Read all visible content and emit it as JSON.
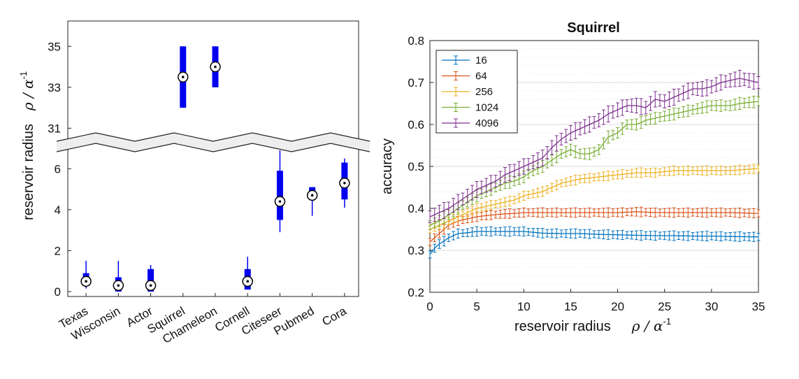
{
  "chart_data": [
    {
      "type": "box",
      "categories": [
        "Texas",
        "Wisconsin",
        "Actor",
        "Squirrel",
        "Chameleon",
        "Cornell",
        "Citeseer",
        "Pubmed",
        "Cora"
      ],
      "ylabel_text": "reservoir radius",
      "ylabel_symbol": "ρ / α",
      "ylabel_exp": "-1",
      "lower_ticks": [
        "0",
        "2",
        "4",
        "6"
      ],
      "upper_ticks": [
        "31",
        "33",
        "35"
      ],
      "lower_ylim": [
        0,
        7
      ],
      "upper_ylim": [
        30.5,
        36
      ],
      "break_between": [
        7,
        30.5
      ],
      "box_color": "#0000ee",
      "boxes": [
        {
          "min": 0.15,
          "q1": 0.3,
          "median": 0.5,
          "q3": 0.9,
          "max": 1.5
        },
        {
          "min": 0.0,
          "q1": 0.0,
          "median": 0.3,
          "q3": 0.7,
          "max": 1.5
        },
        {
          "min": 0.0,
          "q1": 0.0,
          "median": 0.3,
          "q3": 1.1,
          "max": 1.3
        },
        {
          "min": 32,
          "q1": 32,
          "median": 33.5,
          "q3": 35,
          "max": 35
        },
        {
          "min": 33,
          "q1": 33,
          "median": 34,
          "q3": 35,
          "max": 35
        },
        {
          "min": 0.1,
          "q1": 0.1,
          "median": 0.5,
          "q3": 1.1,
          "max": 1.7
        },
        {
          "min": 2.9,
          "q1": 3.5,
          "median": 4.4,
          "q3": 5.9,
          "max": 6.9
        },
        {
          "min": 3.7,
          "q1": 4.6,
          "median": 4.7,
          "q3": 5.1,
          "max": 5.1
        },
        {
          "min": 4.1,
          "q1": 4.5,
          "median": 5.3,
          "q3": 6.3,
          "max": 6.5
        }
      ]
    },
    {
      "type": "line",
      "title": "Squirrel",
      "xlabel_text": "reservoir radius",
      "xlabel_symbol": "ρ / α",
      "xlabel_exp": "-1",
      "ylabel": "accuracy",
      "xlim": [
        0,
        35
      ],
      "ylim": [
        0.2,
        0.8
      ],
      "xticks": [
        "0",
        "5",
        "10",
        "15",
        "20",
        "25",
        "30",
        "35"
      ],
      "yticks": [
        "0.2",
        "0.3",
        "0.4",
        "0.5",
        "0.6",
        "0.7",
        "0.8"
      ],
      "grid": true,
      "legend_position": "top-left",
      "series": [
        {
          "name": "16",
          "color": "#0072bd",
          "points": [
            [
              0,
              0.29
            ],
            [
              0.5,
              0.305
            ],
            [
              1,
              0.315
            ],
            [
              1.5,
              0.322
            ],
            [
              2,
              0.33
            ],
            [
              2.5,
              0.335
            ],
            [
              3,
              0.34
            ],
            [
              4,
              0.342
            ],
            [
              5,
              0.345
            ],
            [
              6,
              0.345
            ],
            [
              7,
              0.345
            ],
            [
              8,
              0.345
            ],
            [
              9,
              0.345
            ],
            [
              10,
              0.345
            ],
            [
              12,
              0.341
            ],
            [
              14,
              0.34
            ],
            [
              16,
              0.34
            ],
            [
              18,
              0.338
            ],
            [
              20,
              0.337
            ],
            [
              22,
              0.336
            ],
            [
              24,
              0.335
            ],
            [
              26,
              0.335
            ],
            [
              28,
              0.334
            ],
            [
              30,
              0.334
            ],
            [
              32,
              0.333
            ],
            [
              35,
              0.332
            ]
          ],
          "err": 0.012
        },
        {
          "name": "64",
          "color": "#d95319",
          "points": [
            [
              0,
              0.32
            ],
            [
              0.5,
              0.33
            ],
            [
              1,
              0.34
            ],
            [
              1.5,
              0.35
            ],
            [
              2,
              0.36
            ],
            [
              3,
              0.37
            ],
            [
              4,
              0.375
            ],
            [
              5,
              0.38
            ],
            [
              6,
              0.383
            ],
            [
              7,
              0.385
            ],
            [
              8,
              0.387
            ],
            [
              9,
              0.388
            ],
            [
              10,
              0.39
            ],
            [
              12,
              0.39
            ],
            [
              14,
              0.39
            ],
            [
              16,
              0.39
            ],
            [
              18,
              0.39
            ],
            [
              20,
              0.39
            ],
            [
              22,
              0.392
            ],
            [
              24,
              0.39
            ],
            [
              26,
              0.39
            ],
            [
              28,
              0.39
            ],
            [
              30,
              0.39
            ],
            [
              32,
              0.39
            ],
            [
              35,
              0.388
            ]
          ],
          "err": 0.012
        },
        {
          "name": "256",
          "color": "#edb120",
          "points": [
            [
              0,
              0.35
            ],
            [
              0.5,
              0.355
            ],
            [
              1,
              0.36
            ],
            [
              2,
              0.37
            ],
            [
              3,
              0.38
            ],
            [
              4,
              0.39
            ],
            [
              5,
              0.4
            ],
            [
              6,
              0.405
            ],
            [
              7,
              0.41
            ],
            [
              8,
              0.415
            ],
            [
              9,
              0.42
            ],
            [
              10,
              0.43
            ],
            [
              11,
              0.435
            ],
            [
              12,
              0.44
            ],
            [
              13,
              0.45
            ],
            [
              14,
              0.46
            ],
            [
              15,
              0.465
            ],
            [
              16,
              0.47
            ],
            [
              18,
              0.475
            ],
            [
              20,
              0.48
            ],
            [
              22,
              0.485
            ],
            [
              24,
              0.485
            ],
            [
              26,
              0.49
            ],
            [
              28,
              0.49
            ],
            [
              30,
              0.49
            ],
            [
              32,
              0.49
            ],
            [
              35,
              0.495
            ]
          ],
          "err": 0.012
        },
        {
          "name": "1024",
          "color": "#77ac30",
          "points": [
            [
              0,
              0.36
            ],
            [
              0.5,
              0.365
            ],
            [
              1,
              0.37
            ],
            [
              2,
              0.385
            ],
            [
              3,
              0.4
            ],
            [
              4,
              0.415
            ],
            [
              5,
              0.43
            ],
            [
              6,
              0.44
            ],
            [
              7,
              0.45
            ],
            [
              8,
              0.46
            ],
            [
              9,
              0.465
            ],
            [
              10,
              0.475
            ],
            [
              11,
              0.49
            ],
            [
              12,
              0.5
            ],
            [
              13,
              0.515
            ],
            [
              14,
              0.53
            ],
            [
              15,
              0.54
            ],
            [
              16,
              0.53
            ],
            [
              17,
              0.53
            ],
            [
              18,
              0.54
            ],
            [
              19,
              0.57
            ],
            [
              20,
              0.58
            ],
            [
              21,
              0.6
            ],
            [
              22,
              0.6
            ],
            [
              23,
              0.61
            ],
            [
              24,
              0.615
            ],
            [
              25,
              0.62
            ],
            [
              26,
              0.625
            ],
            [
              27,
              0.63
            ],
            [
              28,
              0.635
            ],
            [
              29,
              0.64
            ],
            [
              30,
              0.645
            ],
            [
              31,
              0.645
            ],
            [
              32,
              0.645
            ],
            [
              33,
              0.65
            ],
            [
              35,
              0.655
            ]
          ],
          "err": 0.015
        },
        {
          "name": "4096",
          "color": "#7e2f8e",
          "points": [
            [
              0,
              0.38
            ],
            [
              0.5,
              0.385
            ],
            [
              1,
              0.39
            ],
            [
              2,
              0.4
            ],
            [
              3,
              0.415
            ],
            [
              4,
              0.43
            ],
            [
              5,
              0.445
            ],
            [
              6,
              0.455
            ],
            [
              7,
              0.465
            ],
            [
              8,
              0.48
            ],
            [
              9,
              0.49
            ],
            [
              10,
              0.5
            ],
            [
              11,
              0.51
            ],
            [
              12,
              0.52
            ],
            [
              13,
              0.545
            ],
            [
              14,
              0.565
            ],
            [
              15,
              0.58
            ],
            [
              16,
              0.59
            ],
            [
              17,
              0.6
            ],
            [
              18,
              0.61
            ],
            [
              19,
              0.625
            ],
            [
              20,
              0.635
            ],
            [
              21,
              0.645
            ],
            [
              22,
              0.645
            ],
            [
              23,
              0.64
            ],
            [
              24,
              0.66
            ],
            [
              25,
              0.655
            ],
            [
              26,
              0.665
            ],
            [
              27,
              0.675
            ],
            [
              28,
              0.685
            ],
            [
              29,
              0.685
            ],
            [
              30,
              0.69
            ],
            [
              31,
              0.7
            ],
            [
              32,
              0.705
            ],
            [
              33,
              0.71
            ],
            [
              34,
              0.705
            ],
            [
              35,
              0.7
            ]
          ],
          "err": 0.02
        }
      ]
    }
  ]
}
